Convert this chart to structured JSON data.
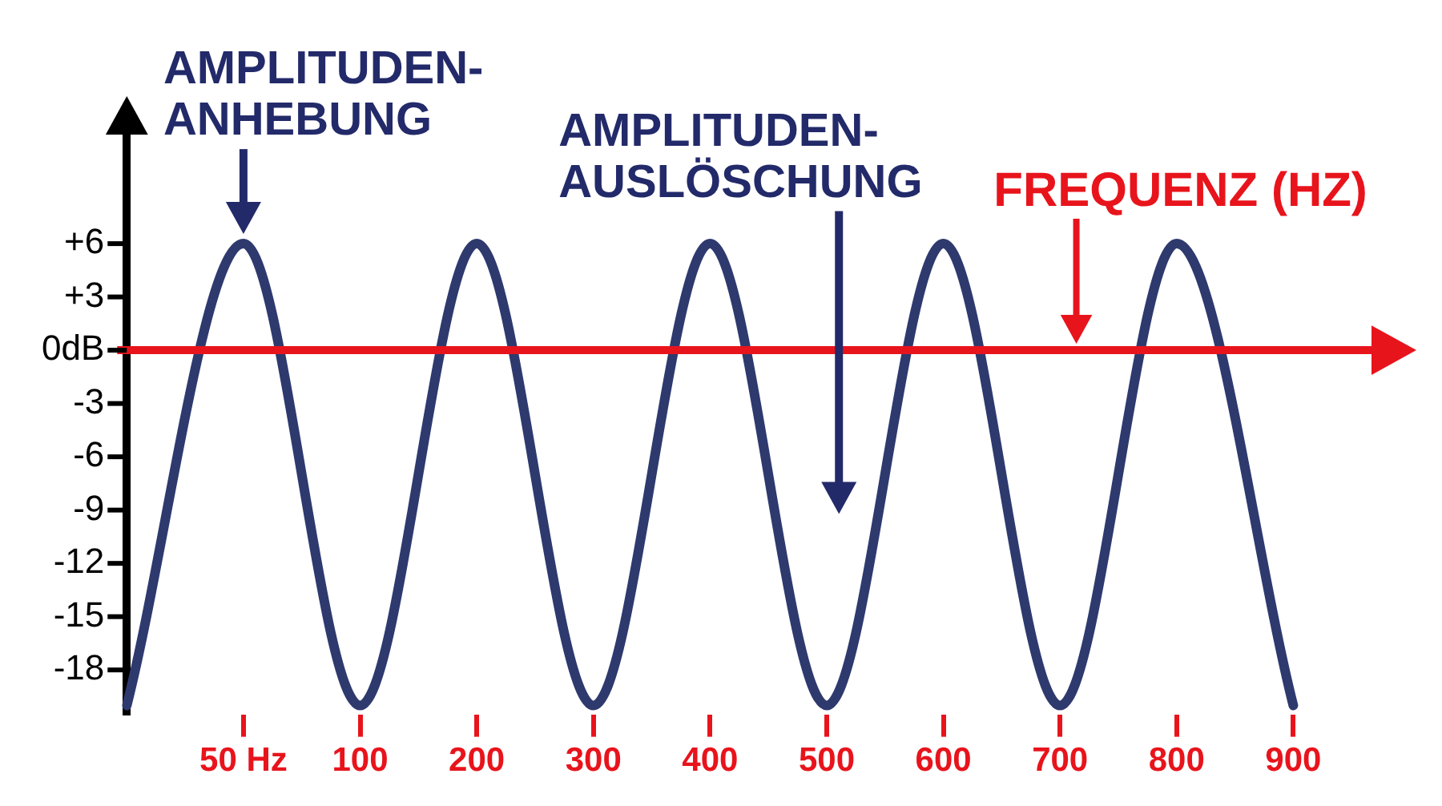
{
  "chart_data": {
    "type": "line",
    "xlabel": "FREQUENZ (HZ)",
    "annotations": [
      {
        "text": "AMPLITUDEN-ANHEBUNG",
        "x": "50 Hz",
        "y": 6
      },
      "AMPLITUDEN-AUSLÖSCHUNG"
    ],
    "categories": [
      null,
      "50 Hz",
      "100",
      "200",
      "300",
      "400",
      "500",
      "600",
      "700",
      "800",
      "900",
      null
    ],
    "series": [
      {
        "color": "#2e3a6e",
        "values": [
          -20,
          6,
          -20,
          6,
          -20,
          6,
          -20,
          6,
          -20,
          6,
          -20,
          null
        ]
      }
    ],
    "ylim": [
      -20.5,
      12.5
    ],
    "yticks": [
      {
        "value": 6,
        "label": "+6"
      },
      {
        "value": 3,
        "label": "+3"
      },
      {
        "value": 0,
        "label": "0dB"
      },
      -3,
      -6,
      -9,
      -12,
      -15,
      -18
    ],
    "ref_lines": [
      {
        "axis": "y",
        "value": 0,
        "color": "#e8141c"
      }
    ],
    "marker": "none"
  }
}
